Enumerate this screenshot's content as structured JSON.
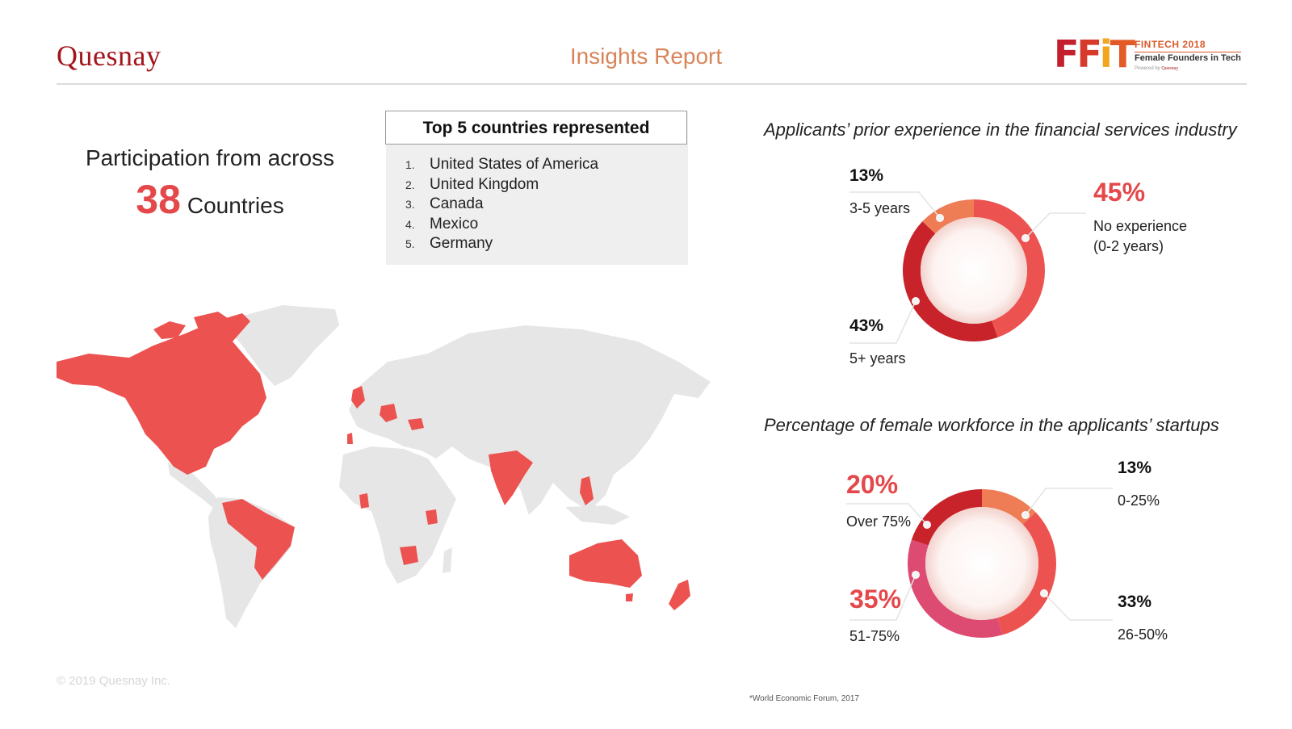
{
  "header": {
    "brand": "Quesnay",
    "title": "Insights Report",
    "logo": {
      "mark": [
        "F",
        "F",
        "i",
        "T"
      ],
      "year_label": "FINTECH 2018",
      "subtitle": "Female Founders in Tech",
      "powered_prefix": "Powered by",
      "powered_brand": "Quesnay"
    }
  },
  "participation": {
    "line1": "Participation from across",
    "count": "38",
    "count_label": "Countries"
  },
  "top_countries": {
    "title": "Top 5 countries represented",
    "items": [
      {
        "num": "1.",
        "name": "United States of America"
      },
      {
        "num": "2.",
        "name": "United Kingdom"
      },
      {
        "num": "3.",
        "name": "Canada"
      },
      {
        "num": "4.",
        "name": "Mexico"
      },
      {
        "num": "5.",
        "name": "Germany"
      }
    ]
  },
  "colors": {
    "accent": "#e4484b",
    "brand": "#a3161d",
    "title": "#d8845a",
    "map_land": "#e6e6e6",
    "map_highlight": "#ec5250"
  },
  "chart_data": [
    {
      "type": "pie",
      "title": "Applicants’ prior experience in the financial services industry",
      "slices": [
        {
          "label": "No experience\n(0-2 years)",
          "pct_label": "45%",
          "value": 45,
          "color": "#ec5250"
        },
        {
          "label": "5+ years",
          "pct_label": "43%",
          "value": 43,
          "color": "#c8222a"
        },
        {
          "label": "3-5 years",
          "pct_label": "13%",
          "value": 13,
          "color": "#ee7c54"
        }
      ]
    },
    {
      "type": "pie",
      "title": "Percentage of female workforce in the applicants’ startups",
      "slices": [
        {
          "label": "0-25%",
          "pct_label": "13%",
          "value": 13,
          "color": "#ee7c54"
        },
        {
          "label": "26-50%",
          "pct_label": "33%",
          "value": 33,
          "color": "#ec5250"
        },
        {
          "label": "51-75%",
          "pct_label": "35%",
          "value": 35,
          "color": "#dd4b72"
        },
        {
          "label": "Over 75%",
          "pct_label": "20%",
          "value": 20,
          "color": "#c8222a"
        }
      ]
    }
  ],
  "footer": {
    "copyright": "© 2019 Quesnay Inc.",
    "source": "*World Economic Forum, 2017"
  }
}
